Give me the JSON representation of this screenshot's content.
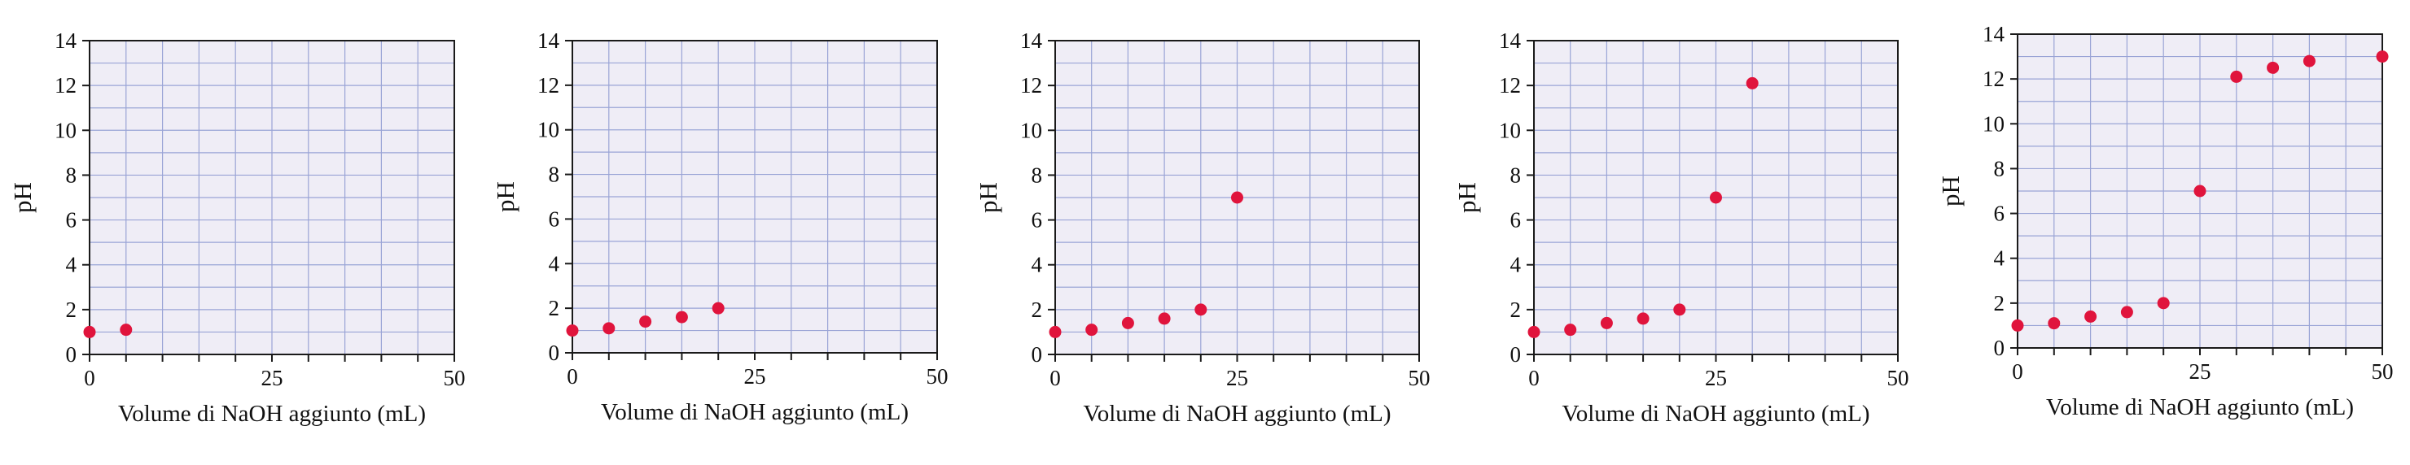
{
  "colors": {
    "plot_bg": "#efedf6",
    "grid": "#9aa4d6",
    "axis": "#1a1a1a",
    "point": "#e0143c"
  },
  "chart_data": [
    {
      "type": "scatter",
      "xlabel": "Volume di NaOH aggiunto (mL)",
      "ylabel": "pH",
      "xlim": [
        0,
        50
      ],
      "ylim": [
        0,
        14
      ],
      "xticks": [
        0,
        25,
        50
      ],
      "yticks": [
        0,
        2,
        4,
        6,
        8,
        10,
        12,
        14
      ],
      "grid": true,
      "x": [
        0,
        5
      ],
      "y": [
        1.0,
        1.1
      ]
    },
    {
      "type": "scatter",
      "xlabel": "Volume di NaOH aggiunto (mL)",
      "ylabel": "pH",
      "xlim": [
        0,
        50
      ],
      "ylim": [
        0,
        14
      ],
      "xticks": [
        0,
        25,
        50
      ],
      "yticks": [
        0,
        2,
        4,
        6,
        8,
        10,
        12,
        14
      ],
      "grid": true,
      "x": [
        0,
        5,
        10,
        15,
        20
      ],
      "y": [
        1.0,
        1.1,
        1.4,
        1.6,
        2.0
      ]
    },
    {
      "type": "scatter",
      "xlabel": "Volume di NaOH aggiunto (mL)",
      "ylabel": "pH",
      "xlim": [
        0,
        50
      ],
      "ylim": [
        0,
        14
      ],
      "xticks": [
        0,
        25,
        50
      ],
      "yticks": [
        0,
        2,
        4,
        6,
        8,
        10,
        12,
        14
      ],
      "grid": true,
      "x": [
        0,
        5,
        10,
        15,
        20,
        25
      ],
      "y": [
        1.0,
        1.1,
        1.4,
        1.6,
        2.0,
        7.0
      ]
    },
    {
      "type": "scatter",
      "xlabel": "Volume di NaOH aggiunto (mL)",
      "ylabel": "pH",
      "xlim": [
        0,
        50
      ],
      "ylim": [
        0,
        14
      ],
      "xticks": [
        0,
        25,
        50
      ],
      "yticks": [
        0,
        2,
        4,
        6,
        8,
        10,
        12,
        14
      ],
      "grid": true,
      "x": [
        0,
        5,
        10,
        15,
        20,
        25,
        30
      ],
      "y": [
        1.0,
        1.1,
        1.4,
        1.6,
        2.0,
        7.0,
        12.1
      ]
    },
    {
      "type": "scatter",
      "xlabel": "Volume di NaOH aggiunto (mL)",
      "ylabel": "pH",
      "xlim": [
        0,
        50
      ],
      "ylim": [
        0,
        14
      ],
      "xticks": [
        0,
        25,
        50
      ],
      "yticks": [
        0,
        2,
        4,
        6,
        8,
        10,
        12,
        14
      ],
      "grid": true,
      "x": [
        0,
        5,
        10,
        15,
        20,
        25,
        30,
        35,
        40,
        50
      ],
      "y": [
        1.0,
        1.1,
        1.4,
        1.6,
        2.0,
        7.0,
        12.1,
        12.5,
        12.8,
        13.0
      ]
    }
  ]
}
